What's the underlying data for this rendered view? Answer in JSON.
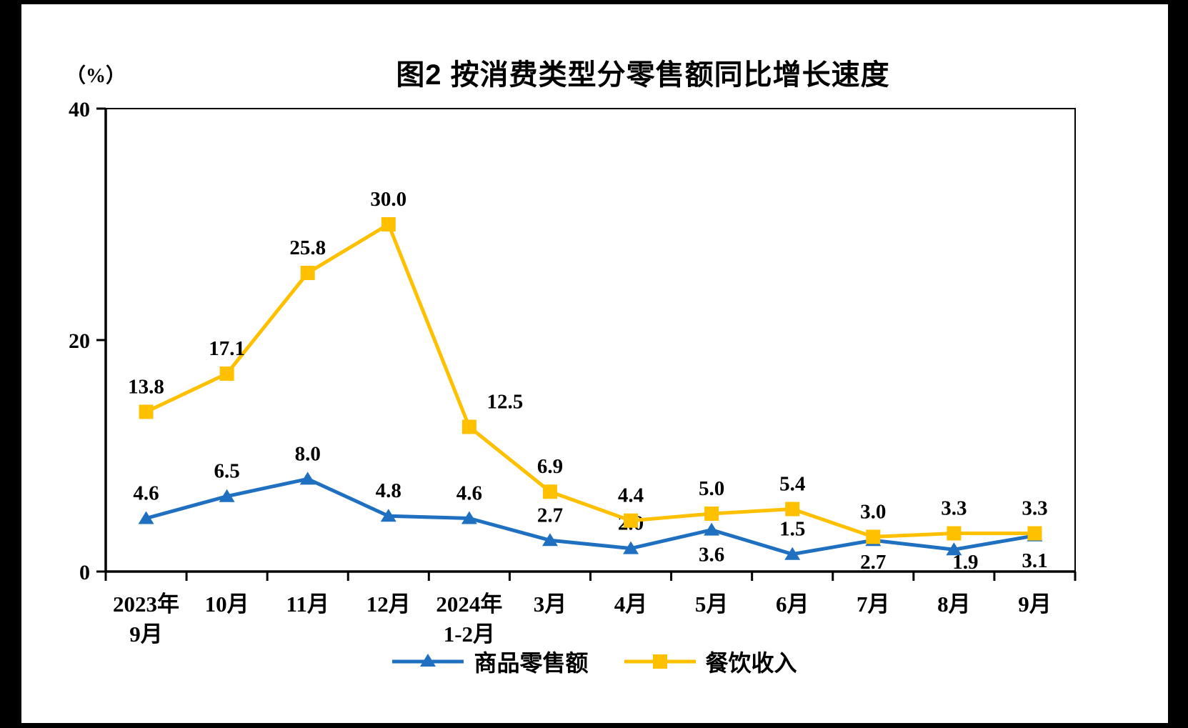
{
  "page": {
    "background": "#ffffff",
    "frame_color": "#000000"
  },
  "chart_data": {
    "type": "line",
    "title": "图2 按消费类型分零售额同比增长速度",
    "unit_label": "（%）",
    "categories": [
      [
        "2023年",
        "9月"
      ],
      [
        "10月"
      ],
      [
        "11月"
      ],
      [
        "12月"
      ],
      [
        "2024年",
        "1-2月"
      ],
      [
        "3月"
      ],
      [
        "4月"
      ],
      [
        "5月"
      ],
      [
        "6月"
      ],
      [
        "7月"
      ],
      [
        "8月"
      ],
      [
        "9月"
      ]
    ],
    "ylim": [
      0,
      40
    ],
    "yticks": [
      0,
      20,
      40
    ],
    "grid": false,
    "legend_position": "bottom",
    "axis_color": "#000000",
    "label_color": "#000000",
    "series": [
      {
        "name": "商品零售额",
        "marker": "triangle",
        "color": "#1f70c1",
        "values": [
          4.6,
          6.5,
          8.0,
          4.8,
          4.6,
          2.7,
          2.0,
          3.6,
          1.5,
          2.7,
          1.9,
          3.1
        ],
        "label_positions": [
          "above",
          "above",
          "above",
          "above",
          "above",
          "above",
          "above",
          "below",
          "above",
          "below",
          "below",
          "below"
        ],
        "label_dx": [
          0,
          0,
          0,
          0,
          0,
          0,
          0,
          0,
          0,
          0,
          16,
          0
        ]
      },
      {
        "name": "餐饮收入",
        "marker": "square",
        "color": "#ffc000",
        "values": [
          13.8,
          17.1,
          25.8,
          30.0,
          12.5,
          6.9,
          4.4,
          5.0,
          5.4,
          3.0,
          3.3,
          3.3
        ],
        "label_positions": [
          "above",
          "above",
          "above",
          "above",
          "above",
          "above",
          "above",
          "above",
          "above",
          "above",
          "above",
          "above"
        ],
        "label_dx": [
          0,
          0,
          0,
          0,
          50,
          0,
          0,
          0,
          0,
          0,
          0,
          0
        ]
      }
    ]
  }
}
